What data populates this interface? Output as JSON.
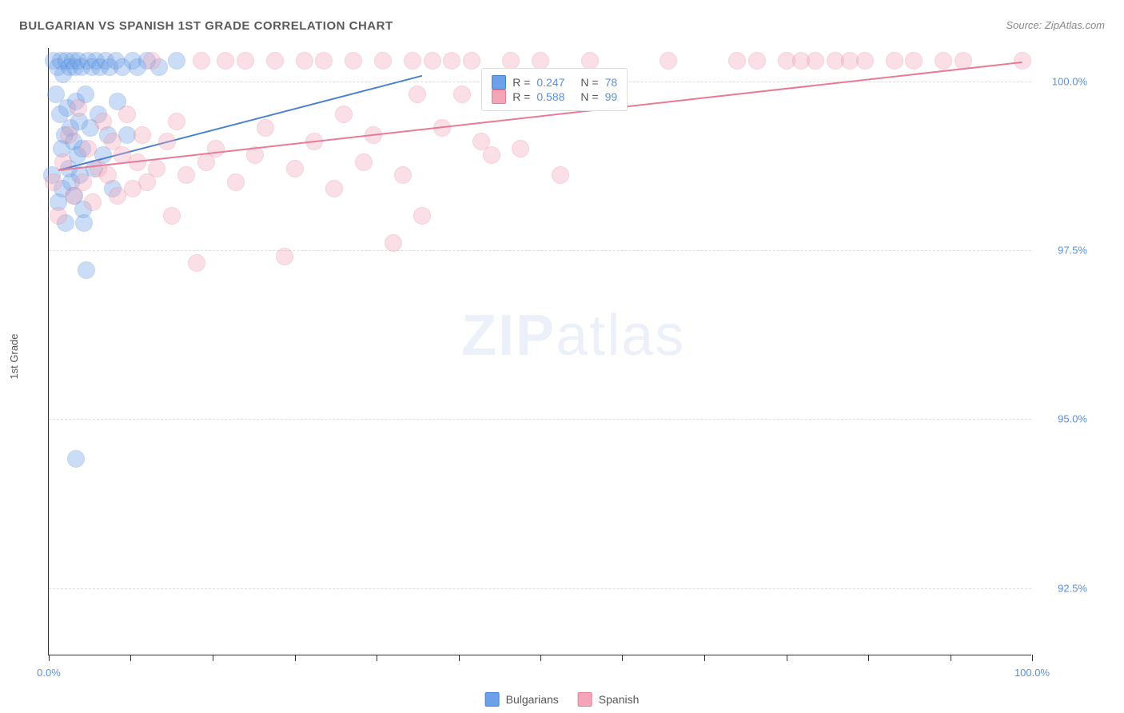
{
  "title": "BULGARIAN VS SPANISH 1ST GRADE CORRELATION CHART",
  "source": "Source: ZipAtlas.com",
  "ylabel": "1st Grade",
  "watermark": {
    "strong": "ZIP",
    "light": "atlas"
  },
  "chart": {
    "type": "scatter",
    "xlim": [
      0,
      100
    ],
    "ylim": [
      91.5,
      100.5
    ],
    "yticks": [
      {
        "v": 92.5,
        "label": "92.5%"
      },
      {
        "v": 95.0,
        "label": "95.0%"
      },
      {
        "v": 97.5,
        "label": "97.5%"
      },
      {
        "v": 100.0,
        "label": "100.0%"
      }
    ],
    "xticks": [
      0,
      8.33,
      16.67,
      25,
      33.33,
      41.67,
      50,
      58.33,
      66.67,
      75,
      83.33,
      91.67,
      100
    ],
    "xlabels": [
      {
        "v": 0,
        "label": "0.0%"
      },
      {
        "v": 100,
        "label": "100.0%"
      }
    ],
    "background_color": "#ffffff",
    "grid_color": "#dddddd",
    "axis_color": "#333333",
    "label_color": "#5a8fd6",
    "marker_radius": 11,
    "marker_opacity": 0.35,
    "marker_border_width": 1.5,
    "series": [
      {
        "name": "Bulgarians",
        "color": "#6ca0e8",
        "border": "#4a80d0",
        "R": 0.247,
        "N": 78,
        "trend": {
          "x1": 1,
          "y1": 98.7,
          "x2": 38,
          "y2": 100.1
        },
        "points": [
          [
            0.3,
            98.6
          ],
          [
            0.5,
            100.3
          ],
          [
            0.7,
            99.8
          ],
          [
            0.9,
            100.2
          ],
          [
            1.0,
            98.2
          ],
          [
            1.1,
            99.5
          ],
          [
            1.2,
            100.3
          ],
          [
            1.3,
            99.0
          ],
          [
            1.4,
            98.4
          ],
          [
            1.5,
            100.1
          ],
          [
            1.6,
            99.2
          ],
          [
            1.7,
            97.9
          ],
          [
            1.8,
            100.3
          ],
          [
            1.9,
            99.6
          ],
          [
            2.0,
            98.7
          ],
          [
            2.1,
            100.2
          ],
          [
            2.2,
            99.3
          ],
          [
            2.3,
            98.5
          ],
          [
            2.4,
            100.3
          ],
          [
            2.5,
            99.1
          ],
          [
            2.6,
            98.3
          ],
          [
            2.7,
            100.2
          ],
          [
            2.8,
            99.7
          ],
          [
            2.9,
            98.9
          ],
          [
            3.0,
            100.3
          ],
          [
            3.1,
            99.4
          ],
          [
            3.2,
            98.6
          ],
          [
            3.3,
            100.2
          ],
          [
            3.4,
            99.0
          ],
          [
            3.5,
            98.1
          ],
          [
            3.6,
            97.9
          ],
          [
            3.7,
            99.8
          ],
          [
            3.8,
            97.2
          ],
          [
            4.0,
            100.3
          ],
          [
            4.2,
            99.3
          ],
          [
            4.4,
            100.2
          ],
          [
            4.6,
            98.7
          ],
          [
            4.8,
            100.3
          ],
          [
            5.0,
            99.5
          ],
          [
            5.2,
            100.2
          ],
          [
            5.5,
            98.9
          ],
          [
            5.8,
            100.3
          ],
          [
            6.0,
            99.2
          ],
          [
            6.2,
            100.2
          ],
          [
            6.5,
            98.4
          ],
          [
            6.8,
            100.3
          ],
          [
            7.0,
            99.7
          ],
          [
            7.5,
            100.2
          ],
          [
            8.0,
            99.2
          ],
          [
            8.5,
            100.3
          ],
          [
            9.0,
            100.2
          ],
          [
            10.0,
            100.3
          ],
          [
            11.2,
            100.2
          ],
          [
            13.0,
            100.3
          ],
          [
            2.8,
            94.4
          ]
        ]
      },
      {
        "name": "Spanish",
        "color": "#f4a6b8",
        "border": "#e87a95",
        "R": 0.588,
        "N": 99,
        "trend": {
          "x1": 1,
          "y1": 98.7,
          "x2": 99,
          "y2": 100.3
        },
        "points": [
          [
            0.5,
            98.5
          ],
          [
            1.0,
            98.0
          ],
          [
            1.5,
            98.8
          ],
          [
            2.0,
            99.2
          ],
          [
            2.5,
            98.3
          ],
          [
            3.0,
            99.6
          ],
          [
            3.5,
            98.5
          ],
          [
            4.0,
            99.0
          ],
          [
            4.5,
            98.2
          ],
          [
            5.0,
            98.7
          ],
          [
            5.5,
            99.4
          ],
          [
            6.0,
            98.6
          ],
          [
            6.5,
            99.1
          ],
          [
            7.0,
            98.3
          ],
          [
            7.5,
            98.9
          ],
          [
            8.0,
            99.5
          ],
          [
            8.5,
            98.4
          ],
          [
            9.0,
            98.8
          ],
          [
            9.5,
            99.2
          ],
          [
            10.0,
            98.5
          ],
          [
            10.5,
            100.3
          ],
          [
            11.0,
            98.7
          ],
          [
            12.0,
            99.1
          ],
          [
            12.5,
            98.0
          ],
          [
            13.0,
            99.4
          ],
          [
            14.0,
            98.6
          ],
          [
            15.0,
            97.3
          ],
          [
            15.5,
            100.3
          ],
          [
            16.0,
            98.8
          ],
          [
            17.0,
            99.0
          ],
          [
            18.0,
            100.3
          ],
          [
            19.0,
            98.5
          ],
          [
            20.0,
            100.3
          ],
          [
            21.0,
            98.9
          ],
          [
            22.0,
            99.3
          ],
          [
            23.0,
            100.3
          ],
          [
            24.0,
            97.4
          ],
          [
            25.0,
            98.7
          ],
          [
            26.0,
            100.3
          ],
          [
            27.0,
            99.1
          ],
          [
            28.0,
            100.3
          ],
          [
            29.0,
            98.4
          ],
          [
            30.0,
            99.5
          ],
          [
            31.0,
            100.3
          ],
          [
            32.0,
            98.8
          ],
          [
            33.0,
            99.2
          ],
          [
            34.0,
            100.3
          ],
          [
            35.0,
            97.6
          ],
          [
            36.0,
            98.6
          ],
          [
            37.0,
            100.3
          ],
          [
            37.5,
            99.8
          ],
          [
            38.0,
            98.0
          ],
          [
            39.0,
            100.3
          ],
          [
            40.0,
            99.3
          ],
          [
            41.0,
            100.3
          ],
          [
            42.0,
            99.8
          ],
          [
            43.0,
            100.3
          ],
          [
            44.0,
            99.1
          ],
          [
            45.0,
            98.9
          ],
          [
            46.0,
            99.7
          ],
          [
            47.0,
            100.3
          ],
          [
            48.0,
            99.0
          ],
          [
            50.0,
            100.3
          ],
          [
            52.0,
            98.6
          ],
          [
            55.0,
            100.3
          ],
          [
            63.0,
            100.3
          ],
          [
            70.0,
            100.3
          ],
          [
            72.0,
            100.3
          ],
          [
            75.0,
            100.3
          ],
          [
            76.5,
            100.3
          ],
          [
            78.0,
            100.3
          ],
          [
            80.0,
            100.3
          ],
          [
            81.5,
            100.3
          ],
          [
            83.0,
            100.3
          ],
          [
            86.0,
            100.3
          ],
          [
            88.0,
            100.3
          ],
          [
            91.0,
            100.3
          ],
          [
            93.0,
            100.3
          ],
          [
            99.0,
            100.3
          ]
        ]
      }
    ]
  },
  "legend": {
    "r_label": "R =",
    "n_label": "N ="
  },
  "bottom_legend": [
    "Bulgarians",
    "Spanish"
  ]
}
